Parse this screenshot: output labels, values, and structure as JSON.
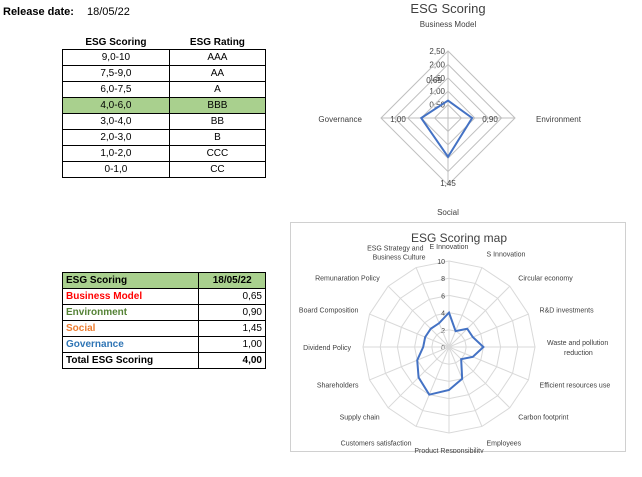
{
  "release": {
    "label": "Release date:",
    "date": "18/05/22"
  },
  "rating_table": {
    "headers": [
      "ESG Scoring",
      "ESG Rating"
    ],
    "rows": [
      [
        "9,0-10",
        "AAA"
      ],
      [
        "7,5-9,0",
        "AA"
      ],
      [
        "6,0-7,5",
        "A"
      ],
      [
        "4,0-6,0",
        "BBB"
      ],
      [
        "3,0-4,0",
        "BB"
      ],
      [
        "2,0-3,0",
        "B"
      ],
      [
        "1,0-2,0",
        "CCC"
      ],
      [
        "0-1,0",
        "CC"
      ]
    ],
    "highlight_row": 3,
    "highlight_color": "#a9d08e"
  },
  "score_table": {
    "header": [
      "ESG Scoring",
      "18/05/22"
    ],
    "rows": [
      {
        "label": "Business Model",
        "value": "0,65",
        "color": "#ff0000"
      },
      {
        "label": "Environment",
        "value": "0,90",
        "color": "#548235"
      },
      {
        "label": "Social",
        "value": "1,45",
        "color": "#ed7d31"
      },
      {
        "label": "Governance",
        "value": "1,00",
        "color": "#2f75b5"
      }
    ],
    "total": {
      "label": "Total ESG Scoring",
      "value": "4,00"
    }
  },
  "chart_data": [
    {
      "type": "radar",
      "title": "ESG Scoring",
      "axes": [
        "Business Model",
        "Environment",
        "Social",
        "Governance"
      ],
      "values": [
        0.65,
        0.9,
        1.45,
        1.0
      ],
      "value_labels": [
        "0,65",
        "0,90",
        "1,45",
        "1,00"
      ],
      "range": [
        0,
        2.5
      ],
      "ticks": [
        "0,50",
        "1,00",
        "1,50",
        "2,00",
        "2,50"
      ],
      "tick_values": [
        0.5,
        1.0,
        1.5,
        2.0,
        2.5
      ],
      "line_color": "#4472c4",
      "grid_color": "#bfbfbf"
    },
    {
      "type": "radar",
      "title": "ESG Scoring map",
      "axes": [
        "E Innovation",
        "S Innovation",
        "Circular economy",
        "R&D investments",
        "Waste and pollution reduction",
        "Efficient resources use",
        "Carbon footprint",
        "Employees",
        "Product Responsibility",
        "Customers satisfaction",
        "Supply chain",
        "Shareholders",
        "Dividend Policy",
        "Board Composition",
        "Remunaration Policy",
        "ESG Strategy and Business Culture"
      ],
      "values": [
        4,
        2,
        3,
        3,
        4,
        3,
        2,
        4,
        5,
        6,
        5,
        4,
        3,
        3,
        3,
        3
      ],
      "range": [
        0,
        10
      ],
      "ticks": [
        "0",
        "2",
        "4",
        "6",
        "8",
        "10"
      ],
      "tick_values": [
        0,
        2,
        4,
        6,
        8,
        10
      ],
      "line_color": "#4472c4",
      "grid_color": "#d9d9d9"
    }
  ]
}
